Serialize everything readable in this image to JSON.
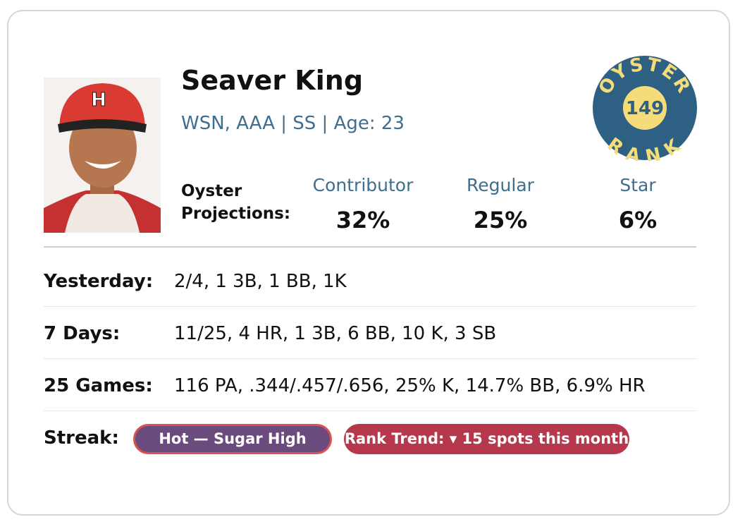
{
  "player": {
    "name": "Seaver King",
    "subtitle": "WSN, AAA | SS | Age: 23"
  },
  "badge": {
    "top": "OYSTER",
    "rank": "149",
    "bottom": "RANK"
  },
  "projections": {
    "label_line1": "Oyster",
    "label_line2": "Projections:",
    "items": [
      {
        "label": "Contributor",
        "value": "32%"
      },
      {
        "label": "Regular",
        "value": "25%"
      },
      {
        "label": "Star",
        "value": "6%"
      }
    ]
  },
  "stats": [
    {
      "label": "Yesterday:",
      "value": "2/4, 1 3B, 1 BB, 1K"
    },
    {
      "label": "7 Days:",
      "value": "11/25, 4 HR, 1 3B, 6 BB, 10 K, 3 SB"
    },
    {
      "label": "25 Games:",
      "value": "116 PA, .344/.457/.656, 25% K, 14.7% BB, 6.9% HR"
    }
  ],
  "streak": {
    "label": "Streak:",
    "hot": "Hot — Sugar High",
    "trend": "Rank Trend: ▾ 15 spots this month"
  }
}
